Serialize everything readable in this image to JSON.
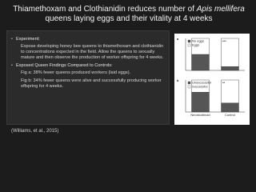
{
  "title": {
    "before": "Thiamethoxam and Clothianidin reduces number of ",
    "italic": "Apis mellifera",
    "after": " queens laying eggs and their vitality at 4 weeks"
  },
  "body": [
    {
      "level": 1,
      "text": "Experiment:"
    },
    {
      "level": 2,
      "text": "Expose developing honey bee queens to thiamethoxam and clothianidin to concentrations expected in the field. Allow the queens to sexually mature and then observe the production of worker offspring for 4 weeks."
    },
    {
      "level": 1,
      "text": "Exposed Queen Findings Compared to Controls:"
    },
    {
      "level": 2,
      "text": "Fig a: 38% fewer queens produced workers (laid eggs)."
    },
    {
      "level": 2,
      "text": "Fig b: 34% fewer queens were alive and successfully producing worker offspring for 4 weeks."
    }
  ],
  "citation": "(Williams, et al., 2015)",
  "figure": {
    "categories": [
      "Neonicotinoid",
      "Control"
    ],
    "panels": [
      {
        "label": "a",
        "significance": "***",
        "ylim": [
          0,
          100
        ],
        "series": [
          {
            "name": "No eggs",
            "color": "#555555",
            "values": [
              50,
              12
            ]
          },
          {
            "name": "Eggs",
            "color": "#ffffff",
            "values": [
              50,
              88
            ]
          }
        ]
      },
      {
        "label": "b",
        "significance": "**",
        "ylim": [
          0,
          100
        ],
        "series": [
          {
            "name": "Unsuccessful",
            "color": "#555555",
            "values": [
              62,
              28
            ]
          },
          {
            "name": "Successful",
            "color": "#ffffff",
            "values": [
              38,
              72
            ]
          }
        ]
      }
    ]
  }
}
